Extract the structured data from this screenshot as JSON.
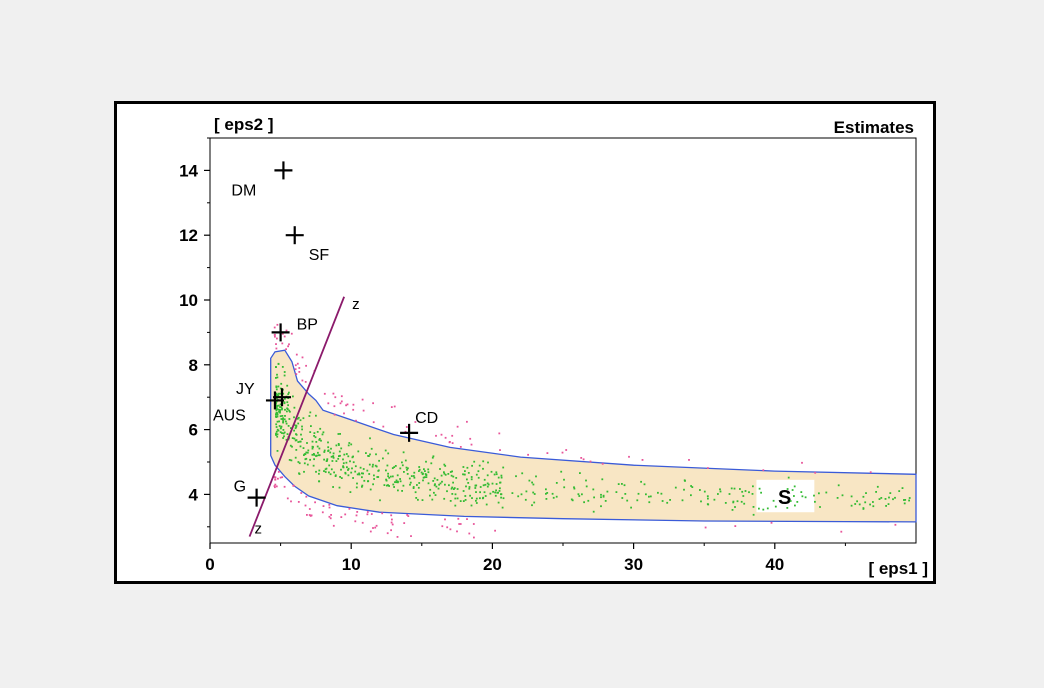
{
  "chart_data": {
    "type": "scatter",
    "title": "Estimates",
    "xlabel": "[ eps1 ]",
    "ylabel": "[ eps2 ]",
    "xlim": [
      0,
      50
    ],
    "ylim": [
      2.5,
      15
    ],
    "xticks": [
      0,
      10,
      20,
      30,
      40
    ],
    "yticks": [
      4,
      6,
      8,
      10,
      12,
      14
    ],
    "grid": false,
    "legend": "none",
    "colors": {
      "region_fill": "#f8e6c4",
      "region_edge": "#3a5bd8",
      "inner_points": "#33bb33",
      "outer_points": "#e8559a",
      "line_z": "#8b1a6b",
      "markers": "#000000",
      "plot_border": "#000000"
    },
    "estimates": [
      {
        "label": "DM",
        "x": 5.2,
        "y": 14.0
      },
      {
        "label": "SF",
        "x": 6.0,
        "y": 12.0
      },
      {
        "label": "BP",
        "x": 5.0,
        "y": 9.0
      },
      {
        "label": "JY",
        "x": 5.1,
        "y": 7.0
      },
      {
        "label": "AUS",
        "x": 4.6,
        "y": 6.9
      },
      {
        "label": "CD",
        "x": 14.1,
        "y": 5.9
      },
      {
        "label": "G",
        "x": 3.3,
        "y": 3.9
      }
    ],
    "line_z": {
      "label": "z",
      "points": [
        [
          2.8,
          2.7
        ],
        [
          9.5,
          10.1
        ]
      ]
    },
    "region": {
      "label": "S",
      "upper": [
        [
          4.3,
          8.2
        ],
        [
          4.6,
          8.4
        ],
        [
          5.3,
          8.45
        ],
        [
          5.8,
          8.1
        ],
        [
          6.2,
          7.5
        ],
        [
          7.0,
          7.1
        ],
        [
          7.5,
          6.9
        ],
        [
          8.0,
          6.6
        ],
        [
          10.0,
          6.3
        ],
        [
          13.0,
          5.85
        ],
        [
          17.0,
          5.45
        ],
        [
          22.0,
          5.15
        ],
        [
          30.0,
          4.9
        ],
        [
          40.0,
          4.72
        ],
        [
          50.0,
          4.62
        ]
      ],
      "lower": [
        [
          50.0,
          3.15
        ],
        [
          45.0,
          3.16
        ],
        [
          35.0,
          3.18
        ],
        [
          25.0,
          3.25
        ],
        [
          18.0,
          3.32
        ],
        [
          12.0,
          3.45
        ],
        [
          9.0,
          3.65
        ],
        [
          7.0,
          3.95
        ],
        [
          6.0,
          4.25
        ],
        [
          5.3,
          4.55
        ],
        [
          4.6,
          4.9
        ],
        [
          4.3,
          5.2
        ]
      ]
    }
  }
}
